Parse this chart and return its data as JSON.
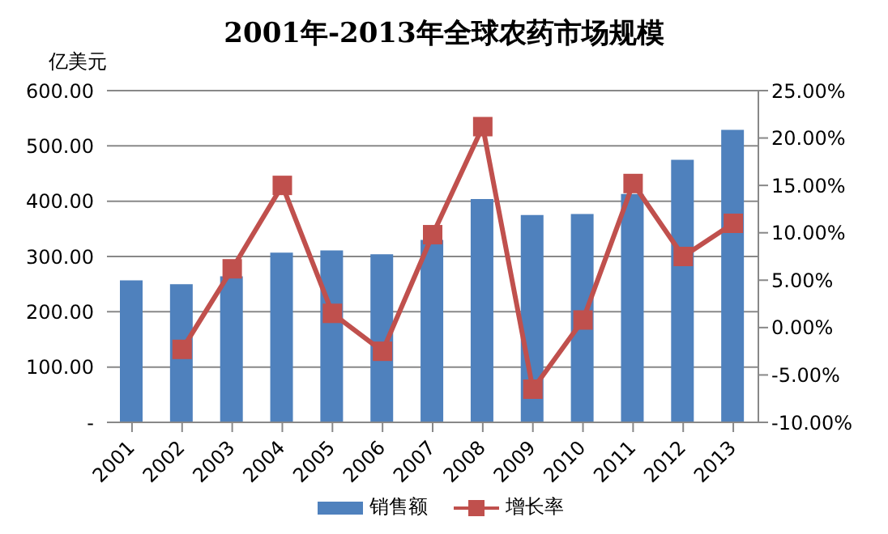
{
  "chart_data": {
    "type": "bar",
    "title": "2001年-2013年全球农药市场规模",
    "ylabel": "亿美元",
    "categories": [
      "2001",
      "2002",
      "2003",
      "2004",
      "2005",
      "2006",
      "2007",
      "2008",
      "2009",
      "2010",
      "2011",
      "2012",
      "2013"
    ],
    "series": [
      {
        "name": "销售额",
        "color": "#4f81bd",
        "values": [
          257,
          250,
          264,
          307,
          311,
          304,
          330,
          404,
          375,
          377,
          413,
          475,
          529
        ]
      },
      {
        "name": "增长率",
        "type": "line",
        "axis": "y2",
        "color": "#c0504d",
        "values": [
          null,
          -2.3,
          6.2,
          15,
          1.5,
          -2.5,
          9.8,
          21.2,
          -6.5,
          0.8,
          15.2,
          7.5,
          11
        ]
      }
    ],
    "ylim": [
      0,
      600
    ],
    "yticks": [
      {
        "value": 0,
        "label": "-"
      },
      {
        "value": 100,
        "label": "100.00"
      },
      {
        "value": 200,
        "label": "200.00"
      },
      {
        "value": 300,
        "label": "300.00"
      },
      {
        "value": 400,
        "label": "400.00"
      },
      {
        "value": 500,
        "label": "500.00"
      },
      {
        "value": 600,
        "label": "600.00"
      }
    ],
    "y2lim": [
      -10,
      25
    ],
    "y2ticks": [
      {
        "value": -10,
        "label": "-10.00%"
      },
      {
        "value": -5,
        "label": "-5.00%"
      },
      {
        "value": 0,
        "label": "0.00%"
      },
      {
        "value": 5,
        "label": "5.00%"
      },
      {
        "value": 10,
        "label": "10.00%"
      },
      {
        "value": 15,
        "label": "15.00%"
      },
      {
        "value": 20,
        "label": "20.00%"
      },
      {
        "value": 25,
        "label": "25.00%"
      }
    ],
    "grid": "y",
    "legend": "bottom",
    "marker": "square"
  }
}
